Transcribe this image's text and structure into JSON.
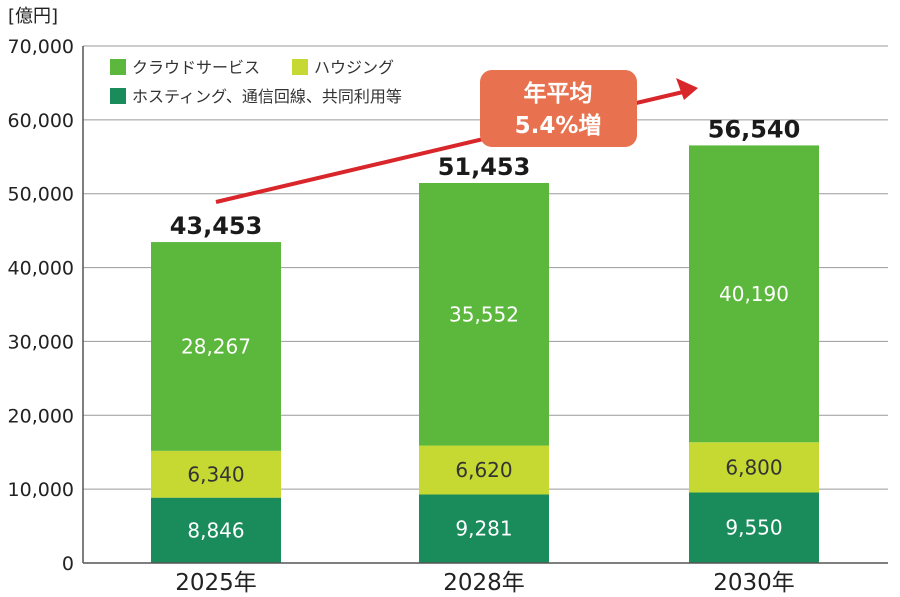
{
  "chart_data": {
    "type": "bar",
    "stacked": true,
    "unit_label": "[億円]",
    "categories": [
      "2025年",
      "2028年",
      "2030年"
    ],
    "series": [
      {
        "name": "ホスティング、通信回線、共同利用等",
        "values": [
          8846,
          9281,
          9550
        ],
        "value_labels": [
          "8,846",
          "9,281",
          "9,550"
        ],
        "color": "#1a8c5b"
      },
      {
        "name": "ハウジング",
        "values": [
          6340,
          6620,
          6800
        ],
        "value_labels": [
          "6,340",
          "6,620",
          "6,800"
        ],
        "color": "#c5d932"
      },
      {
        "name": "クラウドサービス",
        "values": [
          28267,
          35552,
          40190
        ],
        "value_labels": [
          "28,267",
          "35,552",
          "40,190"
        ],
        "color": "#5cb83c"
      }
    ],
    "totals": [
      43453,
      51453,
      56540
    ],
    "total_labels": [
      "43,453",
      "51,453",
      "56,540"
    ],
    "ylim": [
      0,
      70000
    ],
    "yticks": [
      0,
      10000,
      20000,
      30000,
      40000,
      50000,
      60000,
      70000
    ],
    "ytick_labels": [
      "0",
      "10,000",
      "20,000",
      "30,000",
      "40,000",
      "50,000",
      "60,000",
      "70,000"
    ],
    "grid": true,
    "legend_position": "top-left",
    "annotation": {
      "line1": "年平均",
      "line2": "5.4%増",
      "box_color": "#e8724f",
      "arrow_color": "#d9262b"
    }
  }
}
